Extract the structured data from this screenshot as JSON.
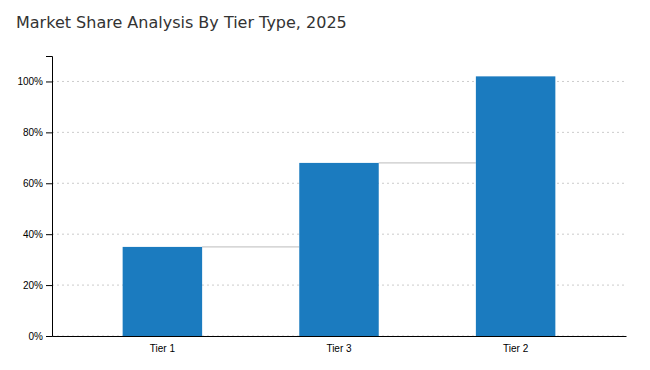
{
  "chart_data": {
    "type": "bar",
    "title": "Market Share Analysis By Tier Type, 2025",
    "categories": [
      "Tier 1",
      "Tier 3",
      "Tier 2"
    ],
    "values": [
      35,
      68,
      102
    ],
    "color": "#1b7bbf",
    "ylim": [
      0,
      110
    ],
    "yticks": [
      {
        "value": 0,
        "label": "0%"
      },
      {
        "value": 20,
        "label": "20%"
      },
      {
        "value": 40,
        "label": "40%"
      },
      {
        "value": 60,
        "label": "60%"
      },
      {
        "value": 80,
        "label": "80%"
      },
      {
        "value": 100,
        "label": "100%"
      }
    ],
    "grid": true
  }
}
